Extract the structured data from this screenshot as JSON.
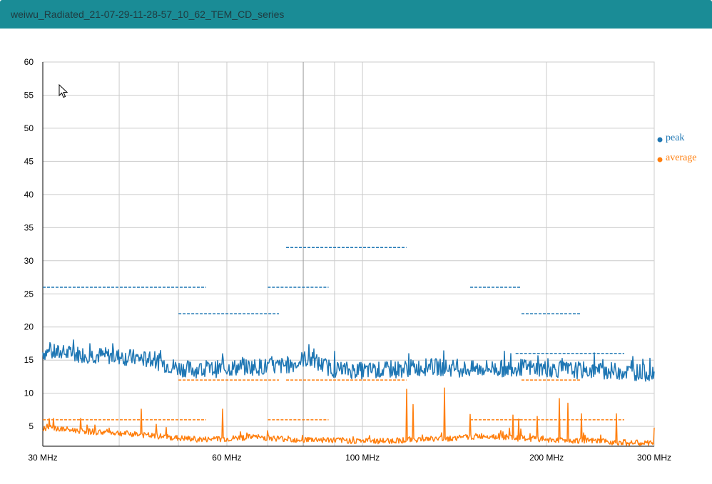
{
  "window": {
    "title": "weiwu_Radiated_21-07-29-11-28-57_10_62_TEM_CD_series"
  },
  "chart_data": {
    "type": "line",
    "title": "",
    "xlabel": "",
    "ylabel": "",
    "xscale": "log",
    "xlim": [
      30,
      300
    ],
    "ylim": [
      2,
      60
    ],
    "yticks": [
      5,
      10,
      15,
      20,
      25,
      30,
      35,
      40,
      45,
      50,
      55,
      60
    ],
    "xtick_labels": [
      {
        "value": 30,
        "label": "30 MHz"
      },
      {
        "value": 60,
        "label": "60 MHz"
      },
      {
        "value": 100,
        "label": "100 MHz"
      },
      {
        "value": 200,
        "label": "200 MHz"
      },
      {
        "value": 300,
        "label": "300 MHz"
      }
    ],
    "xgrid": [
      30,
      40,
      50,
      60,
      70,
      80,
      90,
      100,
      200,
      300
    ],
    "legend": [
      {
        "name": "peak",
        "color": "#1f77b4"
      },
      {
        "name": "average",
        "color": "#ff7f0e"
      }
    ],
    "series": [
      {
        "name": "peak",
        "color": "#1f77b4",
        "x": [
          30,
          33,
          36,
          40,
          43,
          46,
          50,
          55,
          60,
          66,
          72,
          78,
          80,
          83,
          85,
          90,
          100,
          110,
          120,
          130,
          140,
          150,
          160,
          170,
          180,
          190,
          200,
          220,
          250,
          280,
          300
        ],
        "values": [
          16.2,
          16.0,
          15.8,
          15.5,
          15.3,
          14.8,
          13.8,
          13.5,
          13.8,
          14.0,
          14.0,
          14.5,
          15.2,
          15.0,
          14.4,
          13.6,
          13.4,
          13.5,
          13.8,
          14.0,
          13.8,
          13.6,
          13.8,
          13.7,
          13.9,
          13.8,
          13.7,
          13.5,
          13.4,
          13.2,
          13.0
        ]
      },
      {
        "name": "average",
        "color": "#ff7f0e",
        "x": [
          30,
          33,
          36,
          40,
          45,
          50,
          55,
          60,
          66,
          72,
          78,
          85,
          90,
          100,
          110,
          120,
          130,
          140,
          150,
          160,
          170,
          180,
          190,
          200,
          220,
          250,
          280,
          300
        ],
        "values": [
          4.8,
          4.5,
          4.2,
          4.0,
          3.6,
          3.2,
          3.0,
          3.1,
          3.4,
          3.2,
          3.0,
          3.0,
          2.9,
          2.8,
          2.8,
          3.0,
          3.1,
          3.2,
          3.4,
          3.6,
          3.4,
          3.2,
          3.1,
          3.0,
          2.9,
          2.7,
          2.5,
          2.4
        ]
      }
    ],
    "spikes": [
      {
        "x": 31.2,
        "value": 6.2
      },
      {
        "x": 43.5,
        "value": 7.6
      },
      {
        "x": 46,
        "value": 5.3
      },
      {
        "x": 59,
        "value": 7.6
      },
      {
        "x": 118,
        "value": 10.6
      },
      {
        "x": 121,
        "value": 8.3
      },
      {
        "x": 136,
        "value": 10.8
      },
      {
        "x": 150,
        "value": 6.8
      },
      {
        "x": 176,
        "value": 6.7
      },
      {
        "x": 180,
        "value": 6.1
      },
      {
        "x": 193,
        "value": 6.5
      },
      {
        "x": 210,
        "value": 9.2
      },
      {
        "x": 217,
        "value": 8.5
      },
      {
        "x": 228,
        "value": 6.9
      },
      {
        "x": 260,
        "value": 6.9
      },
      {
        "x": 300,
        "value": 4.8
      }
    ],
    "limit_lines": [
      {
        "series": "peak",
        "x_start": 30,
        "x_end": 55.5,
        "value": 26
      },
      {
        "series": "peak",
        "x_start": 50,
        "x_end": 73,
        "value": 22
      },
      {
        "series": "peak",
        "x_start": 70,
        "x_end": 88,
        "value": 26
      },
      {
        "series": "peak",
        "x_start": 75,
        "x_end": 118,
        "value": 32
      },
      {
        "series": "peak",
        "x_start": 150,
        "x_end": 182,
        "value": 26
      },
      {
        "series": "peak",
        "x_start": 182,
        "x_end": 228,
        "value": 22
      },
      {
        "series": "peak",
        "x_start": 178,
        "x_end": 268,
        "value": 16
      },
      {
        "series": "average",
        "x_start": 30,
        "x_end": 55.5,
        "value": 6
      },
      {
        "series": "average",
        "x_start": 50,
        "x_end": 73,
        "value": 12
      },
      {
        "series": "average",
        "x_start": 70,
        "x_end": 88,
        "value": 6
      },
      {
        "series": "average",
        "x_start": 75,
        "x_end": 118,
        "value": 12
      },
      {
        "series": "average",
        "x_start": 150,
        "x_end": 182,
        "value": 6
      },
      {
        "series": "average",
        "x_start": 182,
        "x_end": 228,
        "value": 12
      },
      {
        "series": "average",
        "x_start": 178,
        "x_end": 268,
        "value": 6
      }
    ]
  }
}
